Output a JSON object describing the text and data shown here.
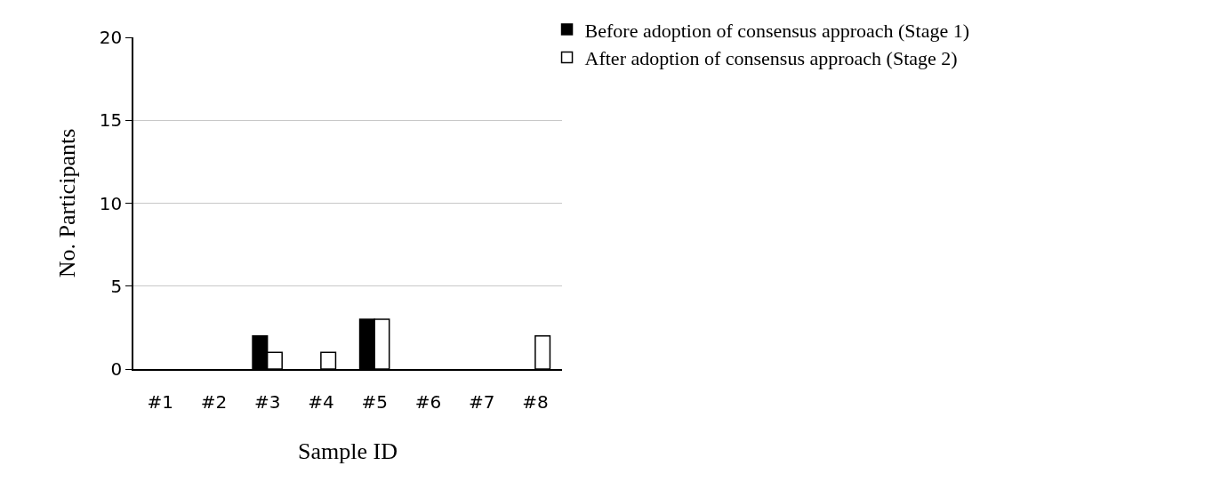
{
  "chart_data": {
    "type": "bar",
    "xlabel": "Sample ID",
    "ylabel": "No. Participants",
    "categories": [
      "#1",
      "#2",
      "#3",
      "#4",
      "#5",
      "#6",
      "#7",
      "#8"
    ],
    "series": [
      {
        "name": "Before adoption of consensus approach (Stage 1)",
        "color": "#000000",
        "values": [
          0,
          0,
          2,
          0,
          3,
          0,
          0,
          0
        ]
      },
      {
        "name": "After adoption of consensus approach (Stage 2)",
        "color": "#ffffff",
        "values": [
          0,
          0,
          1,
          1,
          3,
          0,
          0,
          2
        ]
      }
    ],
    "ylim": [
      0,
      20
    ],
    "yticks": [
      0,
      5,
      10,
      15,
      20
    ],
    "grid": "y",
    "legend": "top right"
  }
}
